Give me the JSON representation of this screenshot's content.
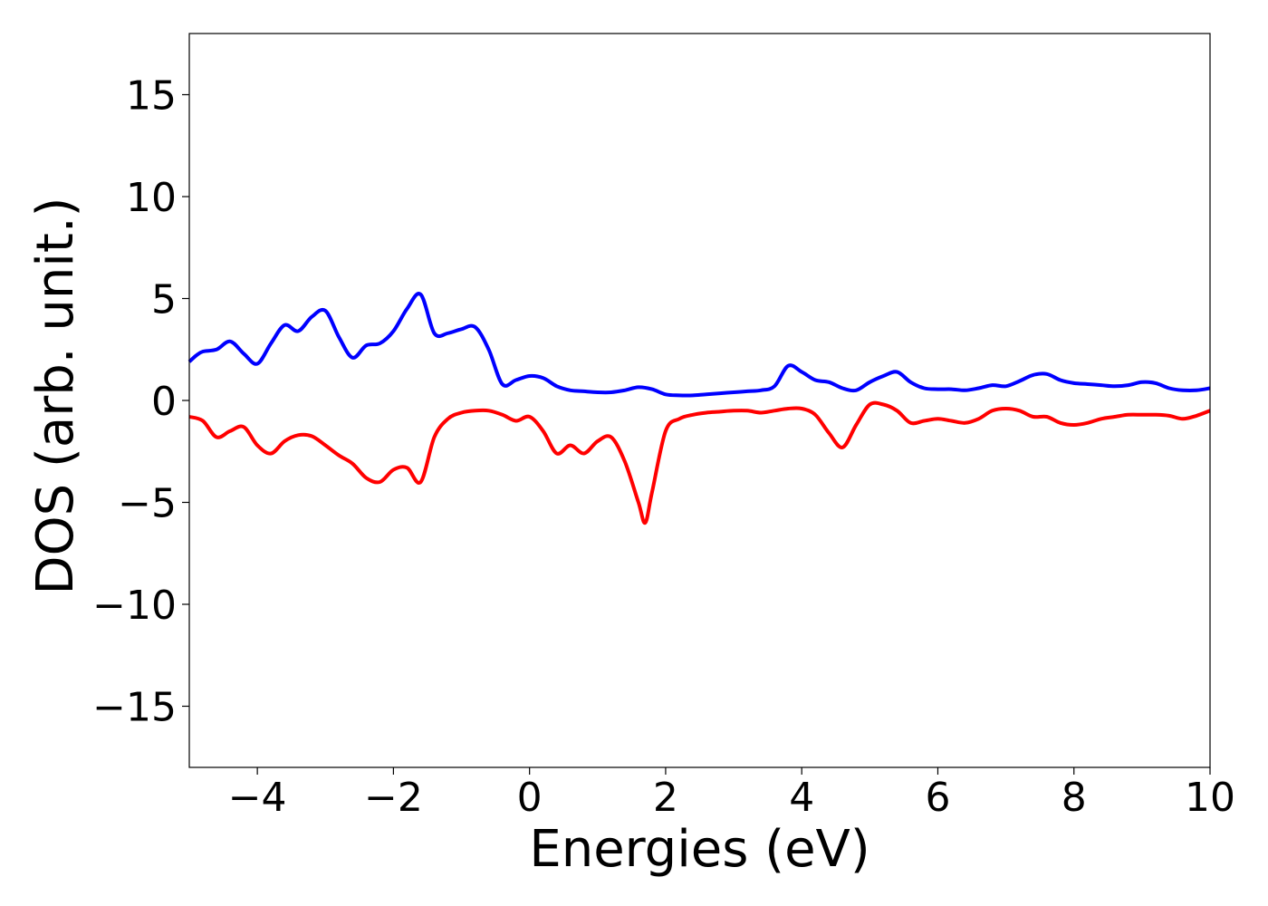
{
  "chart_data": {
    "type": "line",
    "title": "",
    "xlabel": "Energies (eV)",
    "ylabel": "DOS (arb. unit.)",
    "xlim": [
      -5,
      10
    ],
    "ylim": [
      -18,
      18
    ],
    "xticks": [
      -4,
      -2,
      0,
      2,
      4,
      6,
      8,
      10
    ],
    "yticks": [
      -15,
      -10,
      -5,
      0,
      5,
      10,
      15
    ],
    "xtick_labels": [
      "−4",
      "−2",
      "0",
      "2",
      "4",
      "6",
      "8",
      "10"
    ],
    "ytick_labels": [
      "−15",
      "−10",
      "−5",
      "0",
      "5",
      "10",
      "15"
    ],
    "grid": false,
    "series": [
      {
        "color": "#0000ff",
        "x": [
          -5.0,
          -4.9,
          -4.8,
          -4.6,
          -4.4,
          -4.2,
          -4.0,
          -3.8,
          -3.6,
          -3.4,
          -3.2,
          -3.0,
          -2.8,
          -2.6,
          -2.4,
          -2.2,
          -2.0,
          -1.8,
          -1.6,
          -1.4,
          -1.2,
          -1.0,
          -0.8,
          -0.6,
          -0.4,
          -0.2,
          0.0,
          0.2,
          0.4,
          0.6,
          0.8,
          1.0,
          1.2,
          1.4,
          1.6,
          1.8,
          2.0,
          2.2,
          2.4,
          2.6,
          2.8,
          3.0,
          3.2,
          3.4,
          3.6,
          3.8,
          4.0,
          4.2,
          4.4,
          4.6,
          4.8,
          5.0,
          5.2,
          5.4,
          5.6,
          5.8,
          6.0,
          6.2,
          6.4,
          6.6,
          6.8,
          7.0,
          7.2,
          7.4,
          7.6,
          7.8,
          8.0,
          8.2,
          8.4,
          8.6,
          8.8,
          9.0,
          9.2,
          9.4,
          9.6,
          9.8,
          10.0
        ],
        "y": [
          1.9,
          2.2,
          2.4,
          2.5,
          2.9,
          2.3,
          1.8,
          2.8,
          3.7,
          3.4,
          4.1,
          4.4,
          3.1,
          2.1,
          2.7,
          2.8,
          3.4,
          4.5,
          5.2,
          3.3,
          3.3,
          3.5,
          3.6,
          2.5,
          0.8,
          1.0,
          1.2,
          1.1,
          0.7,
          0.5,
          0.45,
          0.4,
          0.4,
          0.5,
          0.65,
          0.55,
          0.3,
          0.25,
          0.25,
          0.3,
          0.35,
          0.4,
          0.45,
          0.5,
          0.7,
          1.7,
          1.4,
          1.0,
          0.9,
          0.6,
          0.5,
          0.9,
          1.2,
          1.4,
          0.9,
          0.6,
          0.55,
          0.55,
          0.5,
          0.6,
          0.75,
          0.7,
          0.95,
          1.25,
          1.3,
          1.0,
          0.85,
          0.8,
          0.75,
          0.7,
          0.75,
          0.9,
          0.85,
          0.6,
          0.5,
          0.5,
          0.6
        ]
      },
      {
        "color": "#ff0000",
        "x": [
          -5.0,
          -4.8,
          -4.6,
          -4.4,
          -4.2,
          -4.0,
          -3.8,
          -3.6,
          -3.4,
          -3.2,
          -3.0,
          -2.8,
          -2.6,
          -2.4,
          -2.2,
          -2.0,
          -1.8,
          -1.6,
          -1.4,
          -1.2,
          -1.0,
          -0.8,
          -0.6,
          -0.4,
          -0.2,
          0.0,
          0.2,
          0.4,
          0.6,
          0.8,
          1.0,
          1.2,
          1.4,
          1.6,
          1.7,
          1.8,
          2.0,
          2.2,
          2.4,
          2.6,
          2.8,
          3.0,
          3.2,
          3.4,
          3.6,
          3.8,
          4.0,
          4.2,
          4.4,
          4.6,
          4.8,
          5.0,
          5.2,
          5.4,
          5.6,
          5.8,
          6.0,
          6.2,
          6.4,
          6.6,
          6.8,
          7.0,
          7.2,
          7.4,
          7.6,
          7.8,
          8.0,
          8.2,
          8.4,
          8.6,
          8.8,
          9.0,
          9.2,
          9.4,
          9.6,
          9.8,
          10.0
        ],
        "y": [
          -0.8,
          -1.0,
          -1.8,
          -1.5,
          -1.3,
          -2.2,
          -2.6,
          -2.0,
          -1.7,
          -1.75,
          -2.2,
          -2.7,
          -3.1,
          -3.8,
          -4.0,
          -3.4,
          -3.3,
          -4.0,
          -1.8,
          -0.9,
          -0.6,
          -0.5,
          -0.5,
          -0.7,
          -1.0,
          -0.8,
          -1.5,
          -2.6,
          -2.2,
          -2.6,
          -2.0,
          -1.8,
          -3.0,
          -5.0,
          -6.0,
          -4.5,
          -1.5,
          -0.9,
          -0.7,
          -0.6,
          -0.55,
          -0.5,
          -0.5,
          -0.6,
          -0.5,
          -0.4,
          -0.4,
          -0.7,
          -1.6,
          -2.3,
          -1.2,
          -0.2,
          -0.2,
          -0.5,
          -1.1,
          -1.0,
          -0.9,
          -1.0,
          -1.1,
          -0.9,
          -0.5,
          -0.4,
          -0.5,
          -0.8,
          -0.8,
          -1.1,
          -1.2,
          -1.1,
          -0.9,
          -0.8,
          -0.7,
          -0.7,
          -0.7,
          -0.75,
          -0.9,
          -0.75,
          -0.5
        ]
      }
    ]
  }
}
